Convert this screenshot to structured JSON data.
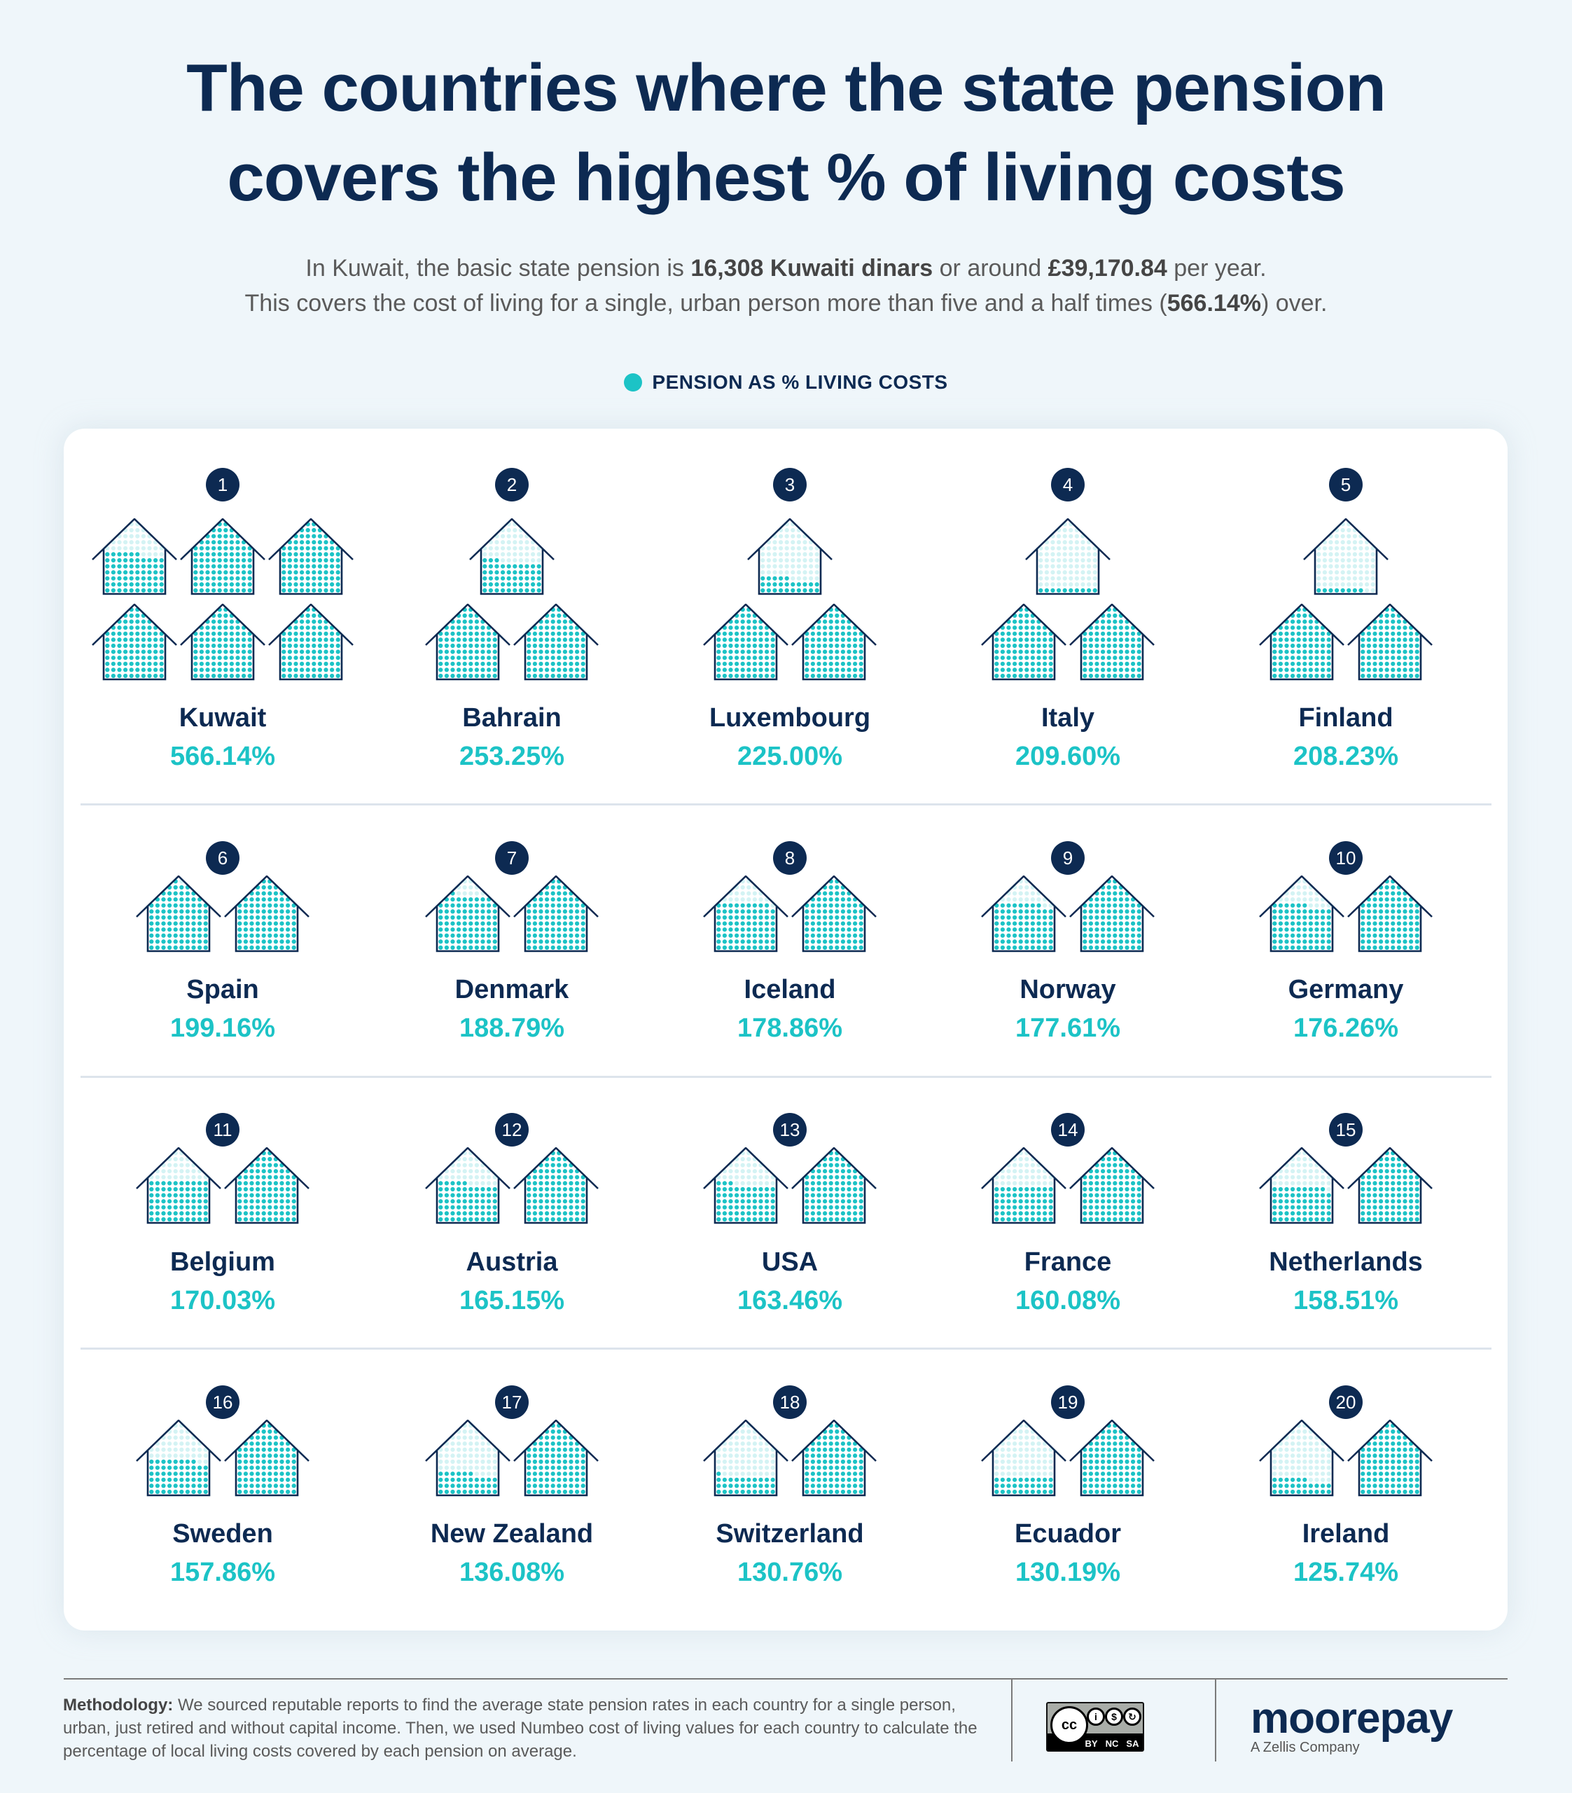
{
  "header": {
    "title_line1": "The countries where the state pension",
    "title_line2": "covers the highest % of living costs",
    "subtitle_line1": {
      "pre": "In Kuwait, the basic state pension is ",
      "bold1": "16,308 Kuwaiti dinars",
      "mid": " or around ",
      "bold2": "£39,170.84",
      "post": " per year."
    },
    "subtitle_line2": {
      "pre": "This covers the cost of living for a single, urban person more than five and a half times (",
      "bold": "566.14%",
      "post": ") over."
    }
  },
  "legend": {
    "label": "PENSION AS % LIVING COSTS",
    "color": "#1CC3C6"
  },
  "colors": {
    "navy": "#0D2A52",
    "teal": "#1CC3C6",
    "teal_light": "#D4F3F4",
    "background": "#EFF6FA"
  },
  "chart_data": {
    "type": "pictogram",
    "title": "The countries where the state pension covers the highest % of living costs",
    "unit": "each house = 100% of living costs; each dot = 1%",
    "legend": [
      "Pension as % living costs"
    ],
    "categories": [
      "Kuwait",
      "Bahrain",
      "Luxembourg",
      "Italy",
      "Finland",
      "Spain",
      "Denmark",
      "Iceland",
      "Norway",
      "Germany",
      "Belgium",
      "Austria",
      "USA",
      "France",
      "Netherlands",
      "Sweden",
      "New Zealand",
      "Switzerland",
      "Ecuador",
      "Ireland"
    ],
    "values": [
      566.14,
      253.25,
      225.0,
      209.6,
      208.23,
      199.16,
      188.79,
      178.86,
      177.61,
      176.26,
      170.03,
      165.15,
      163.46,
      160.08,
      158.51,
      157.86,
      136.08,
      130.76,
      130.19,
      125.74
    ]
  },
  "countries": [
    {
      "rank": "1",
      "name": "Kuwait",
      "pct": "566.14%",
      "value": 566.14
    },
    {
      "rank": "2",
      "name": "Bahrain",
      "pct": "253.25%",
      "value": 253.25
    },
    {
      "rank": "3",
      "name": "Luxembourg",
      "pct": "225.00%",
      "value": 225.0
    },
    {
      "rank": "4",
      "name": "Italy",
      "pct": "209.60%",
      "value": 209.6
    },
    {
      "rank": "5",
      "name": "Finland",
      "pct": "208.23%",
      "value": 208.23
    },
    {
      "rank": "6",
      "name": "Spain",
      "pct": "199.16%",
      "value": 199.16
    },
    {
      "rank": "7",
      "name": "Denmark",
      "pct": "188.79%",
      "value": 188.79
    },
    {
      "rank": "8",
      "name": "Iceland",
      "pct": "178.86%",
      "value": 178.86
    },
    {
      "rank": "9",
      "name": "Norway",
      "pct": "177.61%",
      "value": 177.61
    },
    {
      "rank": "10",
      "name": "Germany",
      "pct": "176.26%",
      "value": 176.26
    },
    {
      "rank": "11",
      "name": "Belgium",
      "pct": "170.03%",
      "value": 170.03
    },
    {
      "rank": "12",
      "name": "Austria",
      "pct": "165.15%",
      "value": 165.15
    },
    {
      "rank": "13",
      "name": "USA",
      "pct": "163.46%",
      "value": 163.46
    },
    {
      "rank": "14",
      "name": "France",
      "pct": "160.08%",
      "value": 160.08
    },
    {
      "rank": "15",
      "name": "Netherlands",
      "pct": "158.51%",
      "value": 158.51
    },
    {
      "rank": "16",
      "name": "Sweden",
      "pct": "157.86%",
      "value": 157.86
    },
    {
      "rank": "17",
      "name": "New Zealand",
      "pct": "136.08%",
      "value": 136.08
    },
    {
      "rank": "18",
      "name": "Switzerland",
      "pct": "130.76%",
      "value": 130.76
    },
    {
      "rank": "19",
      "name": "Ecuador",
      "pct": "130.19%",
      "value": 130.19
    },
    {
      "rank": "20",
      "name": "Ireland",
      "pct": "125.74%",
      "value": 125.74
    }
  ],
  "footer": {
    "methodology_label": "Methodology:",
    "methodology_text": " We sourced reputable reports to find the average state pension rates in each country for a single person, urban, just retired and without capital income. Then, we used Numbeo cost of living values for each country to calculate the percentage of local living costs covered by each pension on average.",
    "license": {
      "cc": "cc",
      "by": "BY",
      "nc": "NC",
      "sa": "SA"
    },
    "brand": "moorepay",
    "brand_sub": "A Zellis Company"
  }
}
